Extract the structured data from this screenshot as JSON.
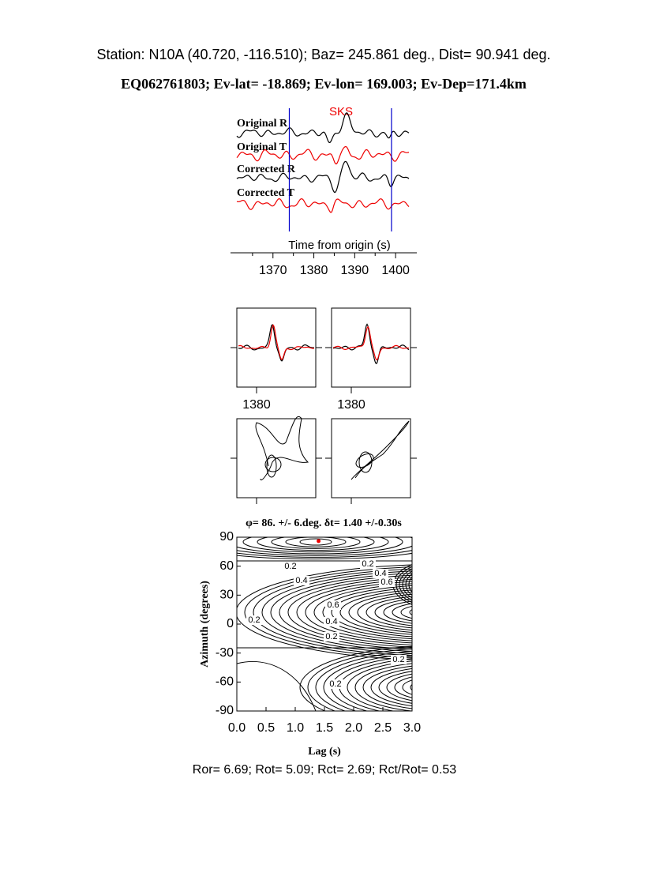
{
  "header": {
    "station": "Station: N10A (40.720, -116.510); Baz=  245.861 deg., Dist=   90.941 deg.",
    "event": "EQ062761803; Ev-lat= -18.869; Ev-lon= 169.003; Ev-Dep=171.4km"
  },
  "chart_data": [
    {
      "type": "waveform",
      "phase_label": "SKS",
      "trace_labels": [
        "Original R",
        "Original T",
        "Corrected R",
        "Corrected T"
      ],
      "xlabel": "Time from origin (s)",
      "xlim": [
        1360,
        1405
      ],
      "xticks": [
        1370,
        1380,
        1390,
        1400
      ],
      "window": [
        1374,
        1399
      ]
    },
    {
      "type": "waveform-compare",
      "xlim": [
        1375,
        1395
      ],
      "xticks": [
        1380
      ]
    },
    {
      "type": "contour",
      "title": "φ= 86. +/- 6.deg. δt= 1.40 +/-0.30s",
      "xlabel": "Lag (s)",
      "ylabel": "Azimuth (degrees)",
      "xlim": [
        0,
        3
      ],
      "ylim": [
        -90,
        90
      ],
      "xticks": [
        {
          "value": 0,
          "label": "0.0"
        },
        {
          "value": 0.5,
          "label": "0.5"
        },
        {
          "value": 1,
          "label": "1.0"
        },
        {
          "value": 1.5,
          "label": "1.5"
        },
        {
          "value": 2,
          "label": "2.0"
        },
        {
          "value": 2.5,
          "label": "2.5"
        },
        {
          "value": 3,
          "label": "3.0"
        }
      ],
      "yticks": [
        90,
        60,
        30,
        0,
        -30,
        -60,
        -90
      ],
      "best": {
        "x": 1.4,
        "y": 86
      },
      "contour_labels": [
        "0.2",
        "0.2",
        "0.4",
        "0.6",
        "0.4",
        "0.2",
        "0.6",
        "0.4",
        "0.2",
        "0.2",
        "0.2"
      ]
    }
  ],
  "footer": "Ror= 6.69; Rot= 5.09; Rct= 2.69; Rct/Rot= 0.53"
}
